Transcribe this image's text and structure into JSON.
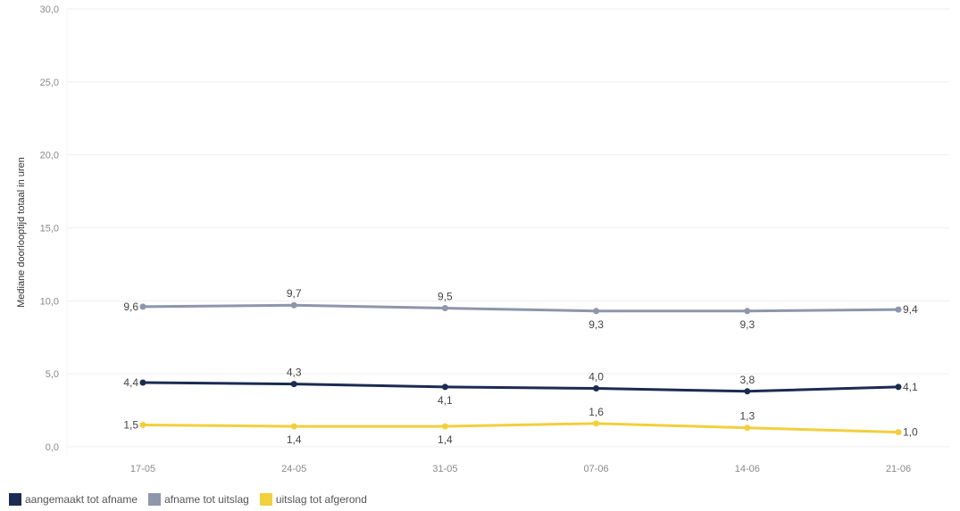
{
  "chart_data": {
    "type": "line",
    "xlabel": "",
    "ylabel": "Mediane doorlooptijd totaal in uren",
    "ylim": [
      0,
      30
    ],
    "yticks": [
      "0,0",
      "5,0",
      "10,0",
      "15,0",
      "20,0",
      "25,0",
      "30,0"
    ],
    "ytick_values": [
      0,
      5,
      10,
      15,
      20,
      25,
      30
    ],
    "categories": [
      "17-05",
      "24-05",
      "31-05",
      "07-06",
      "14-06",
      "21-06"
    ],
    "grid": true,
    "legend_position": "bottom-left",
    "series": [
      {
        "name": "aangemaakt tot afname",
        "color": "#1c2b52",
        "values": [
          4.4,
          4.3,
          4.1,
          4.0,
          3.8,
          4.1
        ],
        "labels": [
          "4,4",
          "4,3",
          "4,1",
          "4,0",
          "3,8",
          "4,1"
        ],
        "label_pos": [
          "left",
          "above",
          "below",
          "above",
          "above",
          "right"
        ]
      },
      {
        "name": "afname tot uitslag",
        "color": "#8e96ac",
        "values": [
          9.6,
          9.7,
          9.5,
          9.3,
          9.3,
          9.4
        ],
        "labels": [
          "9,6",
          "9,7",
          "9,5",
          "9,3",
          "9,3",
          "9,4"
        ],
        "label_pos": [
          "left",
          "above",
          "above",
          "below",
          "below",
          "right"
        ]
      },
      {
        "name": "uitslag tot afgerond",
        "color": "#f2cf3c",
        "values": [
          1.5,
          1.4,
          1.4,
          1.6,
          1.3,
          1.0
        ],
        "labels": [
          "1,5",
          "1,4",
          "1,4",
          "1,6",
          "1,3",
          "1,0"
        ],
        "label_pos": [
          "left",
          "below",
          "below",
          "above",
          "above",
          "right"
        ]
      }
    ]
  }
}
